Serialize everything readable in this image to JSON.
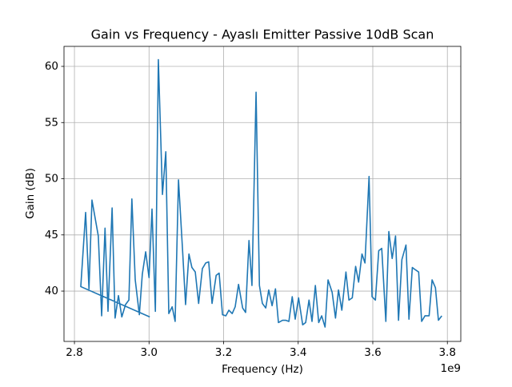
{
  "chart_data": {
    "type": "line",
    "title": "Gain vs Frequency - Ayaslı Emitter Passive 10dB Scan",
    "x_label": "Frequency (Hz)",
    "y_label": "Gain (dB)",
    "x_offset_label": "1e9",
    "x": [
      3002000000,
      2817000000,
      2830000000,
      2839000000,
      2847000000,
      2864000000,
      2873000000,
      2882000000,
      2890000000,
      2901000000,
      2909000000,
      2918000000,
      2927000000,
      2937000000,
      2946000000,
      2954000000,
      2963000000,
      2974000000,
      2982000000,
      2991000000,
      3000000000,
      3008000000,
      3017000000,
      3025000000,
      3036000000,
      3045000000,
      3053000000,
      3062000000,
      3070000000,
      3079000000,
      3090000000,
      3098000000,
      3107000000,
      3115000000,
      3124000000,
      3133000000,
      3143000000,
      3152000000,
      3160000000,
      3169000000,
      3180000000,
      3188000000,
      3197000000,
      3206000000,
      3214000000,
      3223000000,
      3231000000,
      3240000000,
      3251000000,
      3259000000,
      3268000000,
      3276000000,
      3287000000,
      3296000000,
      3304000000,
      3313000000,
      3321000000,
      3330000000,
      3339000000,
      3347000000,
      3358000000,
      3367000000,
      3375000000,
      3384000000,
      3392000000,
      3401000000,
      3412000000,
      3420000000,
      3429000000,
      3437000000,
      3446000000,
      3455000000,
      3463000000,
      3472000000,
      3480000000,
      3491000000,
      3500000000,
      3508000000,
      3517000000,
      3528000000,
      3536000000,
      3545000000,
      3554000000,
      3562000000,
      3571000000,
      3579000000,
      3590000000,
      3598000000,
      3607000000,
      3616000000,
      3624000000,
      3635000000,
      3643000000,
      3652000000,
      3661000000,
      3669000000,
      3678000000,
      3689000000,
      3697000000,
      3706000000,
      3714000000,
      3723000000,
      3731000000,
      3740000000,
      3751000000,
      3759000000,
      3768000000,
      3776000000,
      3785000000
    ],
    "values": [
      37.7,
      40.4,
      47.0,
      40.2,
      48.1,
      44.9,
      37.8,
      45.6,
      38.2,
      47.4,
      37.6,
      39.6,
      37.7,
      38.8,
      39.2,
      48.2,
      41.0,
      37.9,
      41.5,
      43.5,
      41.2,
      47.3,
      38.2,
      60.6,
      48.6,
      52.4,
      38.0,
      38.6,
      37.3,
      49.9,
      43.6,
      38.8,
      43.3,
      42.1,
      41.7,
      38.9,
      42.0,
      42.5,
      42.6,
      38.9,
      41.4,
      41.6,
      37.9,
      37.8,
      38.3,
      38.0,
      38.6,
      40.6,
      38.5,
      38.1,
      44.5,
      40.5,
      57.7,
      40.5,
      38.9,
      38.5,
      40.1,
      38.7,
      40.2,
      37.2,
      37.4,
      37.4,
      37.3,
      39.5,
      37.5,
      39.4,
      37.0,
      37.2,
      39.2,
      37.3,
      40.5,
      37.2,
      37.8,
      36.8,
      41.0,
      39.9,
      37.6,
      40.1,
      38.3,
      41.7,
      39.2,
      39.4,
      42.2,
      40.8,
      43.3,
      42.5,
      50.2,
      39.5,
      39.2,
      43.6,
      43.8,
      37.3,
      45.3,
      42.9,
      44.9,
      37.4,
      42.8,
      44.1,
      37.5,
      42.1,
      41.9,
      41.7,
      37.3,
      37.8,
      37.8,
      41.0,
      40.3,
      37.4,
      37.8
    ],
    "color": "#1f77b4",
    "xlim": [
      2772000000,
      3836000000
    ],
    "xticks": [
      {
        "value": 2800000000,
        "label": "2.8"
      },
      {
        "value": 3000000000,
        "label": "3.0"
      },
      {
        "value": 3200000000,
        "label": "3.2"
      },
      {
        "value": 3400000000,
        "label": "3.4"
      },
      {
        "value": 3600000000,
        "label": "3.6"
      },
      {
        "value": 3800000000,
        "label": "3.8"
      }
    ],
    "ylim": [
      35.52,
      61.78
    ],
    "yticks": [
      40,
      45,
      50,
      55,
      60
    ],
    "grid": true
  }
}
